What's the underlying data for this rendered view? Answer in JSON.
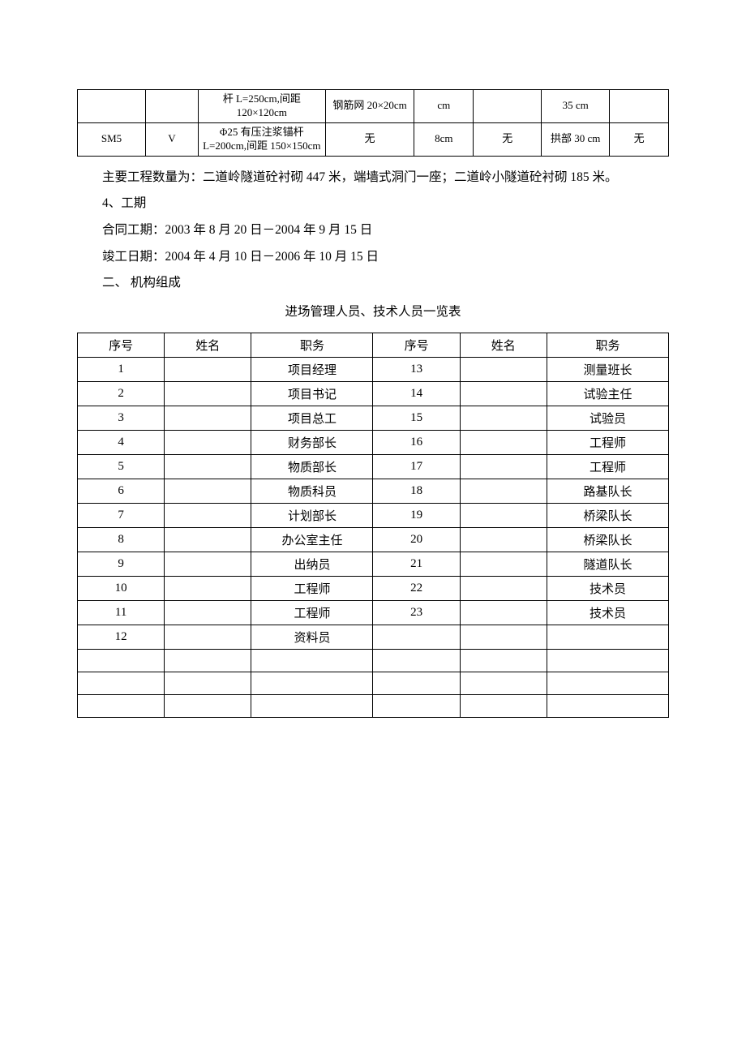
{
  "table1": {
    "rows": [
      {
        "c1": "",
        "c2": "",
        "c3": "杆 L=250cm,间距 120×120cm",
        "c4": "钢筋网 20×20cm",
        "c5": "cm",
        "c6": "",
        "c7": "35 cm",
        "c8": ""
      },
      {
        "c1": "SM5",
        "c2": "V",
        "c3": "Φ25 有压注浆锚杆 L=200cm,间距 150×150cm",
        "c4": "无",
        "c5": "8cm",
        "c6": "无",
        "c7": "拱部 30 cm",
        "c8": "无"
      }
    ]
  },
  "paragraphs": {
    "p1": "主要工程数量为：二道岭隧道砼衬砌 447 米，端墙式洞门一座；二道岭小隧道砼衬砌 185 米。",
    "p2": "4、工期",
    "p3": "合同工期：2003 年 8 月 20 日－2004 年 9 月 15 日",
    "p4": "竣工日期：2004 年 4 月 10 日－2006 年 10 月 15 日",
    "p5": "二、 机构组成",
    "title2": "进场管理人员、技术人员一览表"
  },
  "table2": {
    "headers": {
      "seq": "序号",
      "name": "姓名",
      "role": "职务"
    },
    "left": [
      {
        "seq": "1",
        "name": "",
        "role": "项目经理"
      },
      {
        "seq": "2",
        "name": "",
        "role": "项目书记"
      },
      {
        "seq": "3",
        "name": "",
        "role": "项目总工"
      },
      {
        "seq": "4",
        "name": "",
        "role": "财务部长"
      },
      {
        "seq": "5",
        "name": "",
        "role": "物质部长"
      },
      {
        "seq": "6",
        "name": "",
        "role": "物质科员"
      },
      {
        "seq": "7",
        "name": "",
        "role": "计划部长"
      },
      {
        "seq": "8",
        "name": "",
        "role": "办公室主任"
      },
      {
        "seq": "9",
        "name": "",
        "role": "出纳员"
      },
      {
        "seq": "10",
        "name": "",
        "role": "工程师"
      },
      {
        "seq": "11",
        "name": "",
        "role": "工程师"
      },
      {
        "seq": "12",
        "name": "",
        "role": "资料员"
      },
      {
        "seq": "",
        "name": "",
        "role": ""
      },
      {
        "seq": "",
        "name": "",
        "role": ""
      },
      {
        "seq": "",
        "name": "",
        "role": ""
      }
    ],
    "right": [
      {
        "seq": "13",
        "name": "",
        "role": "测量班长"
      },
      {
        "seq": "14",
        "name": "",
        "role": "试验主任"
      },
      {
        "seq": "15",
        "name": "",
        "role": "试验员"
      },
      {
        "seq": "16",
        "name": "",
        "role": "工程师"
      },
      {
        "seq": "17",
        "name": "",
        "role": "工程师"
      },
      {
        "seq": "18",
        "name": "",
        "role": "路基队长"
      },
      {
        "seq": "19",
        "name": "",
        "role": "桥梁队长"
      },
      {
        "seq": "20",
        "name": "",
        "role": "桥梁队长"
      },
      {
        "seq": "21",
        "name": "",
        "role": "隧道队长"
      },
      {
        "seq": "22",
        "name": "",
        "role": "技术员"
      },
      {
        "seq": "23",
        "name": "",
        "role": "技术员"
      },
      {
        "seq": "",
        "name": "",
        "role": ""
      },
      {
        "seq": "",
        "name": "",
        "role": ""
      },
      {
        "seq": "",
        "name": "",
        "role": ""
      },
      {
        "seq": "",
        "name": "",
        "role": ""
      }
    ]
  }
}
